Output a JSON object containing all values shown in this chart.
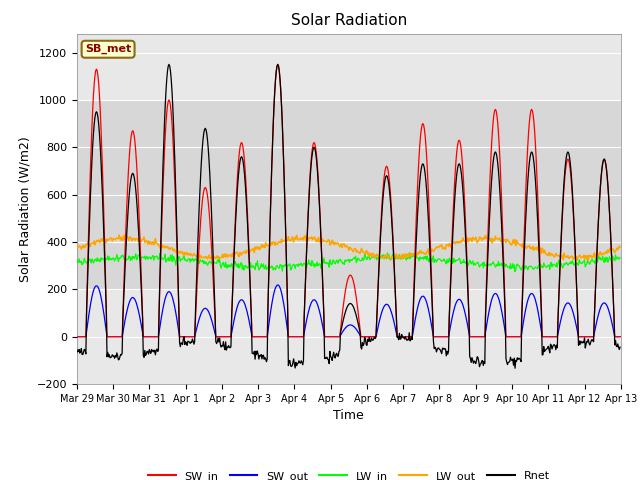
{
  "title": "Solar Radiation",
  "xlabel": "Time",
  "ylabel": "Solar Radiation (W/m2)",
  "ylim": [
    -200,
    1280
  ],
  "yticks": [
    -200,
    0,
    200,
    400,
    600,
    800,
    1000,
    1200
  ],
  "plot_bg": "#e8e8e8",
  "fig_bg": "#ffffff",
  "grid_color": "#ffffff",
  "shade_band": [
    200,
    1000
  ],
  "shade_color": "#d0d0d0",
  "line_colors": {
    "SW_in": "red",
    "SW_out": "blue",
    "LW_in": "lime",
    "LW_out": "orange",
    "Rnet": "black"
  },
  "station_label": "SB_met",
  "station_box_facecolor": "#ffffcc",
  "station_box_edgecolor": "#8B6914",
  "station_text_color": "#8B0000",
  "x_tick_labels": [
    "Mar 29",
    "Mar 30",
    "Mar 31",
    "Apr 1",
    "Apr 2",
    "Apr 3",
    "Apr 4",
    "Apr 5",
    "Apr 6",
    "Apr 7",
    "Apr 8",
    "Apr 9",
    "Apr 10",
    "Apr 11",
    "Apr 12",
    "Apr 13"
  ],
  "x_tick_positions": [
    0,
    24,
    48,
    72,
    96,
    120,
    144,
    168,
    192,
    216,
    240,
    264,
    288,
    312,
    336,
    360
  ],
  "sw_in_peaks": [
    1130,
    870,
    1000,
    630,
    820,
    1150,
    820,
    260,
    720,
    900,
    830,
    960,
    960,
    750,
    750
  ],
  "rnet_peaks": [
    950,
    690,
    1150,
    880,
    760,
    1150,
    800,
    140,
    680,
    730,
    730,
    780,
    780,
    780,
    750
  ],
  "lw_in_base": 315,
  "lw_out_base": 375,
  "sw_albedo": 0.19,
  "dt": 0.5,
  "days": 15
}
